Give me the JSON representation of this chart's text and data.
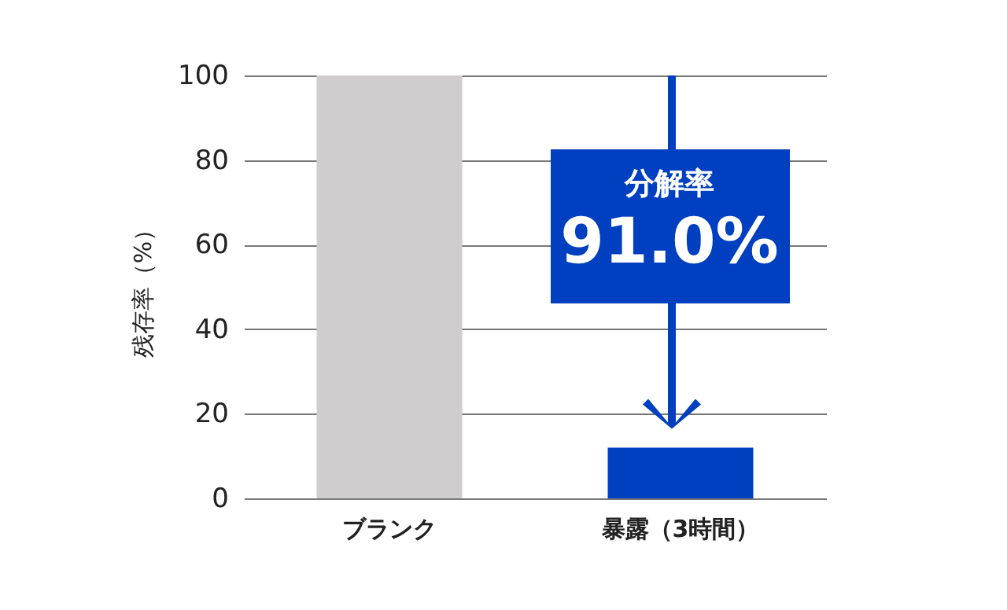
{
  "chart_data": {
    "type": "bar",
    "ylabel": "残存率（%）",
    "categories": [
      "ブランク",
      "暴露（3時間）"
    ],
    "values": [
      100,
      12
    ],
    "colors": [
      "#cfcdce",
      "#0040c0"
    ],
    "ylim": [
      0,
      100
    ],
    "yticks": [
      0,
      20,
      40,
      60,
      80,
      100
    ],
    "grid": "y",
    "annotations": [
      "分解率",
      "91.0%"
    ]
  }
}
